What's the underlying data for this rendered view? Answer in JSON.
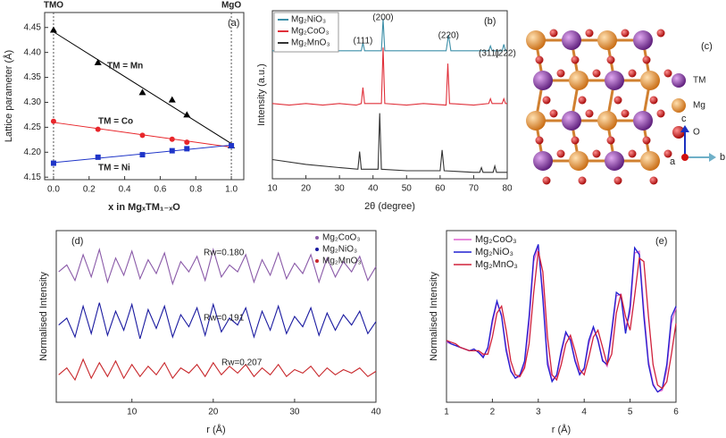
{
  "chart_data": [
    {
      "type": "scatter",
      "panel_label": "(a)",
      "ylabel": "Lattice parameter (Å)",
      "xlabel": "x in MgₓTM₁₋ₓO",
      "annotations": [
        "TMO",
        "MgO"
      ],
      "x": [
        0,
        0.25,
        0.5,
        0.667,
        0.75,
        1
      ],
      "series": [
        {
          "name": "TM = Mn",
          "color": "#000000",
          "marker": "triangle",
          "values": [
            4.445,
            4.38,
            4.32,
            4.305,
            4.275,
            4.213
          ]
        },
        {
          "name": "TM = Co",
          "color": "#e8262b",
          "marker": "circle",
          "values": [
            4.262,
            4.246,
            4.234,
            4.226,
            4.22,
            4.213
          ]
        },
        {
          "name": "TM = Ni",
          "color": "#1f35c8",
          "marker": "square",
          "values": [
            4.178,
            4.19,
            4.195,
            4.203,
            4.207,
            4.213
          ]
        }
      ],
      "xlim": [
        -0.05,
        1.07
      ],
      "ylim": [
        4.145,
        4.48
      ],
      "xticks": [
        {
          "value": 0,
          "label": "0.0"
        },
        {
          "value": 0.2,
          "label": "0.2"
        },
        {
          "value": 0.4,
          "label": "0.4"
        },
        {
          "value": 0.6,
          "label": "0.6"
        },
        {
          "value": 0.8,
          "label": "0.8"
        },
        {
          "value": 1,
          "label": "1.0"
        }
      ],
      "yticks": [
        4.15,
        {
          "value": 4.2,
          "label": "4.20"
        },
        4.25,
        {
          "value": 4.3,
          "label": "4.30"
        },
        4.35,
        {
          "value": 4.4,
          "label": "4.40"
        },
        4.45
      ]
    },
    {
      "type": "line",
      "panel_label": "(b)",
      "xlabel": "2θ (degree)",
      "ylabel": "Intensity (a.u.)",
      "series": [
        {
          "name": "Mg₂NiO₃",
          "color": "#3d8fa8",
          "x": [
            10,
            20,
            30,
            36.5,
            37,
            37.5,
            42.5,
            43,
            43.5,
            50,
            61.8,
            62.5,
            63.2,
            70,
            74.5,
            75,
            75.5,
            78.5,
            79,
            79.5,
            80
          ],
          "values": [
            80,
            80,
            80,
            80,
            85,
            80,
            80,
            100,
            80,
            80,
            80,
            90,
            80,
            80,
            80,
            83,
            80,
            80,
            84,
            80,
            80
          ]
        },
        {
          "name": "Mg₂CoO₃",
          "color": "#e0303a",
          "x": [
            10,
            15,
            20,
            25,
            30,
            35,
            36.5,
            37,
            37.5,
            42.5,
            43,
            43.5,
            50,
            55,
            61.8,
            62.3,
            62.8,
            70,
            74.5,
            75,
            75.5,
            78.5,
            79,
            79.5,
            80
          ],
          "values": [
            47,
            46,
            47,
            46,
            47,
            46,
            47,
            57,
            47,
            47,
            82,
            47,
            46,
            47,
            46,
            72,
            47,
            46,
            47,
            50,
            47,
            47,
            50,
            47,
            47
          ]
        },
        {
          "name": "Mg₂MnO₃",
          "color": "#333333",
          "x": [
            10,
            20,
            30,
            35.5,
            36,
            36.5,
            41.5,
            42,
            42.5,
            50,
            60,
            60.6,
            61.2,
            70,
            71.8,
            72.3,
            72.8,
            75.8,
            76.3,
            76.8,
            80
          ],
          "values": [
            12,
            9,
            7,
            6,
            17,
            6,
            6,
            41,
            6,
            5,
            5,
            18,
            5,
            4,
            4,
            7,
            4,
            4,
            8,
            4,
            4
          ]
        }
      ],
      "peaks": [
        {
          "label": "(111)",
          "x": 37
        },
        {
          "label": "(200)",
          "x": 43
        },
        {
          "label": "(220)",
          "x": 62.5
        },
        {
          "label": "(311)",
          "x": 74.5
        },
        {
          "label": "(222)",
          "x": 79.5
        }
      ],
      "xlim": [
        10,
        80
      ],
      "ylim": [
        0,
        105
      ],
      "xticks": [
        10,
        20,
        30,
        40,
        50,
        60,
        70,
        80
      ]
    },
    {
      "type": "line",
      "panel_label": "(d)",
      "xlabel": "r (Å)",
      "ylabel": "Normalised Intensity",
      "x": [
        1,
        2,
        3,
        4,
        5,
        6,
        7,
        8,
        9,
        10,
        11,
        12,
        13,
        14,
        15,
        16,
        17,
        18,
        19,
        20,
        21,
        22,
        23,
        24,
        25,
        26,
        27,
        28,
        29,
        30,
        31,
        32,
        33,
        34,
        35,
        36,
        37,
        38,
        39,
        40
      ],
      "series": [
        {
          "name": "Mg₂CoO₃",
          "color": "#8a5aa8",
          "fit_label": "Rw=0.180",
          "values": [
            7.6,
            8.0,
            7.1,
            8.6,
            7.3,
            8.9,
            7.0,
            8.4,
            7.4,
            8.8,
            7.2,
            8.3,
            7.5,
            8.7,
            6.9,
            8.2,
            7.6,
            8.5,
            7.1,
            8.9,
            7.3,
            8.0,
            7.6,
            8.6,
            7.0,
            8.3,
            7.4,
            8.7,
            7.2,
            8.1,
            7.5,
            8.6,
            7.0,
            8.4,
            7.3,
            8.2,
            7.6,
            8.5,
            7.1,
            7.9
          ]
        },
        {
          "name": "Mg₂NiO₃",
          "color": "#1a1aa0",
          "fit_label": "Rw=0.191",
          "values": [
            4.5,
            4.9,
            3.8,
            5.6,
            4.0,
            5.8,
            3.9,
            5.3,
            4.2,
            5.7,
            3.7,
            5.4,
            4.3,
            5.6,
            3.8,
            5.1,
            4.4,
            5.5,
            3.9,
            5.7,
            4.1,
            4.9,
            4.5,
            5.5,
            3.8,
            5.3,
            4.2,
            5.6,
            4.0,
            5.0,
            4.4,
            5.5,
            3.9,
            5.2,
            4.2,
            5.1,
            4.5,
            5.3,
            4.0,
            4.7
          ]
        },
        {
          "name": "Mg₂MnO₃",
          "color": "#c8272b",
          "fit_label": "Rw=0.207",
          "values": [
            1.6,
            2.0,
            1.3,
            2.5,
            1.4,
            2.3,
            1.5,
            2.4,
            1.4,
            2.2,
            1.5,
            2.1,
            1.6,
            2.3,
            1.4,
            2.0,
            1.7,
            2.2,
            1.5,
            2.3,
            1.6,
            2.1,
            1.7,
            2.2,
            1.5,
            2.0,
            1.6,
            2.2,
            1.5,
            1.9,
            1.7,
            2.1,
            1.5,
            2.0,
            1.6,
            1.9,
            1.7,
            2.0,
            1.5,
            1.8
          ]
        }
      ],
      "xlim": [
        0.7,
        40
      ],
      "ylim": [
        0,
        10
      ],
      "xticks": [
        10,
        20,
        30,
        40
      ]
    },
    {
      "type": "line",
      "panel_label": "(e)",
      "xlabel": "r (Å)",
      "ylabel": "Normalised Intensity",
      "x": [
        1.0,
        1.1,
        1.2,
        1.3,
        1.4,
        1.5,
        1.6,
        1.7,
        1.8,
        1.9,
        2.0,
        2.1,
        2.2,
        2.3,
        2.4,
        2.5,
        2.6,
        2.7,
        2.8,
        2.9,
        3.0,
        3.1,
        3.2,
        3.3,
        3.4,
        3.5,
        3.6,
        3.7,
        3.8,
        3.9,
        4.0,
        4.1,
        4.2,
        4.3,
        4.4,
        4.5,
        4.6,
        4.7,
        4.8,
        4.9,
        5.0,
        5.1,
        5.2,
        5.3,
        5.4,
        5.5,
        5.6,
        5.7,
        5.8,
        5.9,
        6.0
      ],
      "series": [
        {
          "name": "Mg₂CoO₃",
          "color": "#e060d0",
          "values": [
            3.5,
            3.4,
            3.3,
            3.2,
            3.1,
            3.0,
            3.1,
            2.9,
            2.7,
            3.1,
            4.6,
            5.8,
            5.1,
            3.2,
            1.9,
            1.4,
            1.5,
            2.2,
            4.6,
            8.2,
            9.1,
            6.4,
            2.5,
            1.3,
            1.5,
            2.8,
            4.0,
            3.7,
            2.5,
            1.7,
            1.9,
            3.4,
            4.3,
            3.7,
            2.5,
            2.1,
            3.9,
            6.2,
            6.3,
            4.3,
            5.2,
            8.7,
            8.8,
            5.4,
            2.4,
            1.1,
            0.6,
            0.7,
            1.9,
            4.6,
            5.5
          ]
        },
        {
          "name": "Mg₂NiO₃",
          "color": "#2020d0",
          "values": [
            3.6,
            3.4,
            3.3,
            3.2,
            3.1,
            3.0,
            3.1,
            2.9,
            2.6,
            3.2,
            4.8,
            5.9,
            5.0,
            3.0,
            1.8,
            1.4,
            1.6,
            2.4,
            5.0,
            8.5,
            9.2,
            6.0,
            2.2,
            1.2,
            1.6,
            3.0,
            4.1,
            3.6,
            2.4,
            1.6,
            2.0,
            3.6,
            4.4,
            3.6,
            2.4,
            2.2,
            4.2,
            6.4,
            6.2,
            4.0,
            5.6,
            9.0,
            8.6,
            5.0,
            2.2,
            1.0,
            0.6,
            0.8,
            2.2,
            5.0,
            5.6
          ]
        },
        {
          "name": "Mg₂MnO₃",
          "color": "#d0203a",
          "values": [
            3.6,
            3.5,
            3.4,
            3.2,
            3.1,
            3.0,
            3.0,
            3.0,
            2.8,
            2.8,
            3.8,
            5.2,
            5.6,
            4.2,
            2.4,
            1.6,
            1.5,
            2.0,
            3.4,
            6.4,
            8.8,
            7.6,
            3.8,
            1.6,
            1.3,
            2.2,
            3.4,
            3.9,
            3.0,
            1.9,
            1.6,
            2.6,
            3.8,
            4.2,
            3.2,
            2.2,
            2.8,
            5.2,
            6.3,
            5.0,
            4.2,
            6.2,
            8.4,
            8.2,
            5.0,
            2.2,
            1.0,
            0.8,
            1.2,
            2.8,
            4.6
          ]
        }
      ],
      "xlim": [
        1,
        6
      ],
      "ylim": [
        0,
        10
      ],
      "xticks": [
        1,
        2,
        3,
        4,
        5,
        6
      ]
    }
  ],
  "structure": {
    "label": "(c)",
    "legend": [
      "TM",
      "Mg",
      "O"
    ],
    "axes": [
      "a",
      "b",
      "c"
    ]
  }
}
